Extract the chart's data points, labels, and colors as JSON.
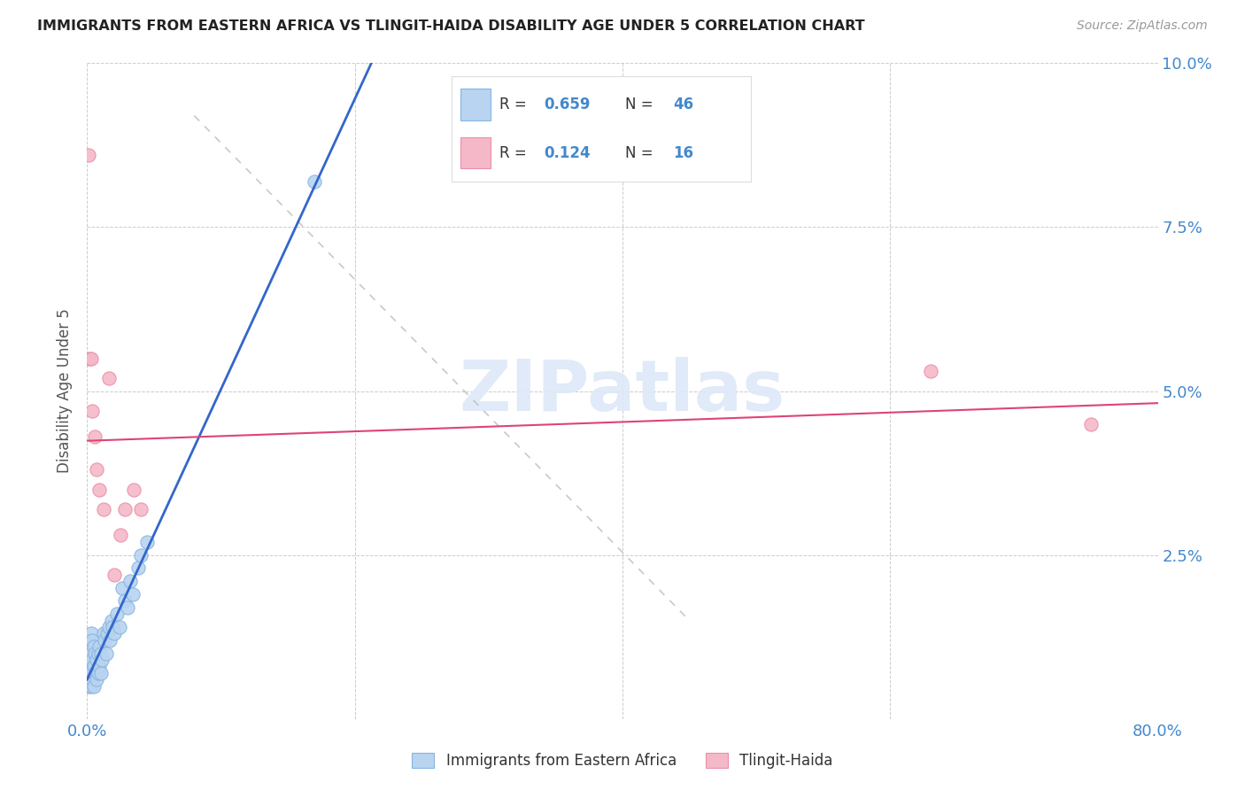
{
  "title": "IMMIGRANTS FROM EASTERN AFRICA VS TLINGIT-HAIDA DISABILITY AGE UNDER 5 CORRELATION CHART",
  "source": "Source: ZipAtlas.com",
  "ylabel": "Disability Age Under 5",
  "xlim": [
    0.0,
    0.8
  ],
  "ylim": [
    0.0,
    0.1
  ],
  "xticks": [
    0.0,
    0.2,
    0.4,
    0.6,
    0.8
  ],
  "yticks": [
    0.0,
    0.025,
    0.05,
    0.075,
    0.1
  ],
  "xtick_labels": [
    "0.0%",
    "",
    "",
    "",
    "80.0%"
  ],
  "ytick_labels_right": [
    "",
    "2.5%",
    "5.0%",
    "7.5%",
    "10.0%"
  ],
  "legend_entries": [
    {
      "label": "Immigrants from Eastern Africa",
      "color": "#b8d4f0",
      "edge_color": "#88b4e0",
      "R": "0.659",
      "N": "46"
    },
    {
      "label": "Tlingit-Haida",
      "color": "#f5b8c8",
      "edge_color": "#e890a8",
      "R": "0.124",
      "N": "16"
    }
  ],
  "blue_scatter_x": [
    0.001,
    0.001,
    0.002,
    0.002,
    0.002,
    0.003,
    0.003,
    0.003,
    0.003,
    0.004,
    0.004,
    0.004,
    0.005,
    0.005,
    0.005,
    0.006,
    0.006,
    0.007,
    0.007,
    0.008,
    0.008,
    0.009,
    0.009,
    0.01,
    0.01,
    0.011,
    0.012,
    0.013,
    0.014,
    0.015,
    0.016,
    0.017,
    0.018,
    0.019,
    0.02,
    0.022,
    0.024,
    0.026,
    0.028,
    0.03,
    0.032,
    0.034,
    0.038,
    0.04,
    0.045,
    0.17
  ],
  "blue_scatter_y": [
    0.005,
    0.008,
    0.006,
    0.009,
    0.012,
    0.005,
    0.007,
    0.01,
    0.013,
    0.006,
    0.009,
    0.012,
    0.005,
    0.008,
    0.011,
    0.007,
    0.01,
    0.006,
    0.009,
    0.007,
    0.01,
    0.008,
    0.011,
    0.007,
    0.01,
    0.009,
    0.013,
    0.012,
    0.01,
    0.013,
    0.014,
    0.012,
    0.015,
    0.014,
    0.013,
    0.016,
    0.014,
    0.02,
    0.018,
    0.017,
    0.021,
    0.019,
    0.023,
    0.025,
    0.027,
    0.082
  ],
  "pink_scatter_x": [
    0.001,
    0.002,
    0.003,
    0.004,
    0.006,
    0.007,
    0.009,
    0.012,
    0.016,
    0.02,
    0.025,
    0.028,
    0.035,
    0.04,
    0.63,
    0.75
  ],
  "pink_scatter_y": [
    0.086,
    0.055,
    0.055,
    0.047,
    0.043,
    0.038,
    0.035,
    0.032,
    0.052,
    0.022,
    0.028,
    0.032,
    0.035,
    0.032,
    0.053,
    0.045
  ],
  "blue_line_color": "#3366cc",
  "pink_line_color": "#dd4477",
  "diag_line_color": "#bbbbbb",
  "watermark_color": "#dde8f8",
  "background_color": "#ffffff",
  "grid_color": "#cccccc",
  "grid_style": "--",
  "tick_color": "#4488cc",
  "label_color": "#555555"
}
